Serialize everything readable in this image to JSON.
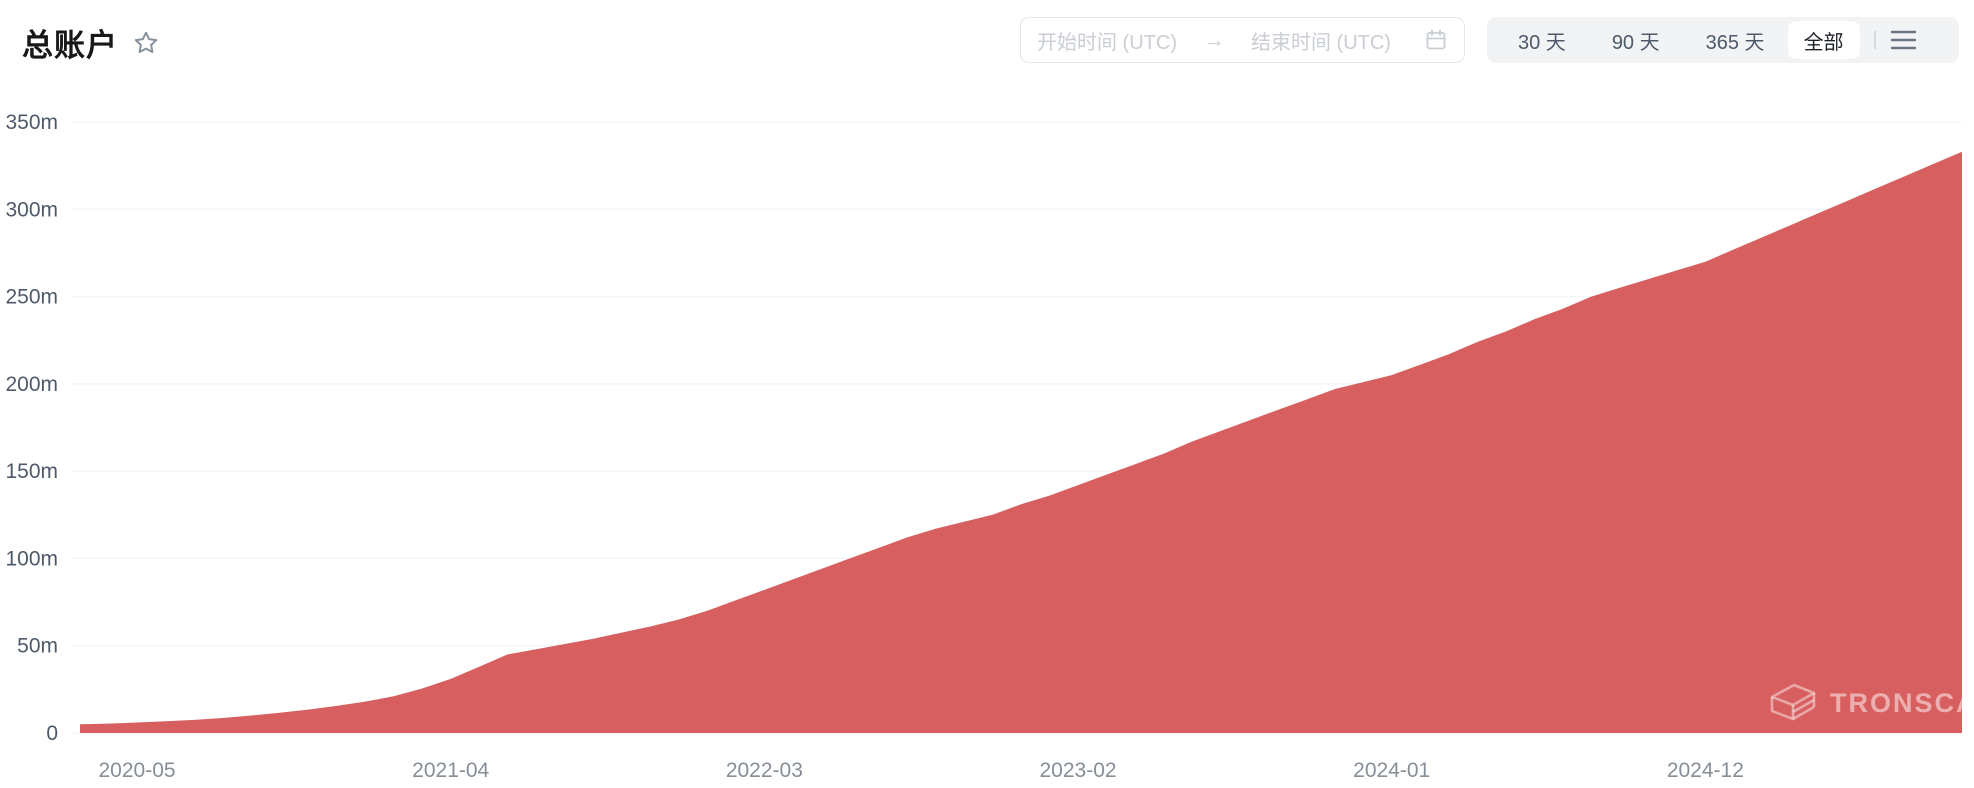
{
  "page": {
    "title": "总账户"
  },
  "controls": {
    "date_range": {
      "start_placeholder": "开始时间 (UTC)",
      "arrow": "→",
      "end_placeholder": "结束时间 (UTC)"
    },
    "ranges": [
      {
        "label": "30 天",
        "selected": false
      },
      {
        "label": "90 天",
        "selected": false
      },
      {
        "label": "365 天",
        "selected": false
      },
      {
        "label": "全部",
        "selected": true
      }
    ]
  },
  "watermark": {
    "text": "TRONSCAN"
  },
  "colors": {
    "area_fill": "#D85F5F",
    "grid_line": "#f3f5f7",
    "y_label": "#4e5969",
    "x_label": "#868e98",
    "title_text": "#17181a",
    "muted_icon": "#86909c",
    "placeholder": "#c9cdd4"
  },
  "chart_data": {
    "type": "area",
    "title": "总账户",
    "unit": "millions of accounts (m = million)",
    "ylim": [
      0,
      350
    ],
    "grid": "horizontal-only",
    "legend": "none",
    "yticks": [
      {
        "value": 0,
        "label": "0"
      },
      {
        "value": 50,
        "label": "50m"
      },
      {
        "value": 100,
        "label": "100m"
      },
      {
        "value": 150,
        "label": "150m"
      },
      {
        "value": 200,
        "label": "200m"
      },
      {
        "value": 250,
        "label": "250m"
      },
      {
        "value": 300,
        "label": "300m"
      },
      {
        "value": 350,
        "label": "350m"
      }
    ],
    "xticks": [
      "2020-05",
      "2021-04",
      "2022-03",
      "2023-02",
      "2024-01",
      "2024-12"
    ],
    "x": [
      "2020-03",
      "2020-04",
      "2020-05",
      "2020-06",
      "2020-07",
      "2020-08",
      "2020-09",
      "2020-10",
      "2020-11",
      "2020-12",
      "2021-01",
      "2021-02",
      "2021-03",
      "2021-04",
      "2021-05",
      "2021-06",
      "2021-07",
      "2021-08",
      "2021-09",
      "2021-10",
      "2021-11",
      "2021-12",
      "2022-01",
      "2022-02",
      "2022-03",
      "2022-04",
      "2022-05",
      "2022-06",
      "2022-07",
      "2022-08",
      "2022-09",
      "2022-10",
      "2022-11",
      "2022-12",
      "2023-01",
      "2023-02",
      "2023-03",
      "2023-04",
      "2023-05",
      "2023-06",
      "2023-07",
      "2023-08",
      "2023-09",
      "2023-10",
      "2023-11",
      "2023-12",
      "2024-01",
      "2024-02",
      "2024-03",
      "2024-04",
      "2024-05",
      "2024-06",
      "2024-07",
      "2024-08",
      "2024-09",
      "2024-10",
      "2024-11",
      "2024-12",
      "2025-01",
      "2025-02",
      "2025-03",
      "2025-04",
      "2025-05",
      "2025-06",
      "2025-07",
      "2025-08",
      "2025-09"
    ],
    "values": [
      5.0,
      5.4,
      6.0,
      6.7,
      7.5,
      8.6,
      10.0,
      11.6,
      13.4,
      15.5,
      18.0,
      21.0,
      25.5,
      31.0,
      38.0,
      45.0,
      48.0,
      51.0,
      54.0,
      57.5,
      61.0,
      65.0,
      70.0,
      76.0,
      82.0,
      88.0,
      94.0,
      100.0,
      106.0,
      112.0,
      117.0,
      121.0,
      125.0,
      131.0,
      136.0,
      142.0,
      148.0,
      154.0,
      160.0,
      167.0,
      173.0,
      179.0,
      185.0,
      191.0,
      197.0,
      201.0,
      205.0,
      211.0,
      217.0,
      224.0,
      230.0,
      237.0,
      243.0,
      250.0,
      255.0,
      260.0,
      265.0,
      270.0,
      277.0,
      284.0,
      291.0,
      298.0,
      305.0,
      312.0,
      319.0,
      326.0,
      333.0
    ]
  }
}
